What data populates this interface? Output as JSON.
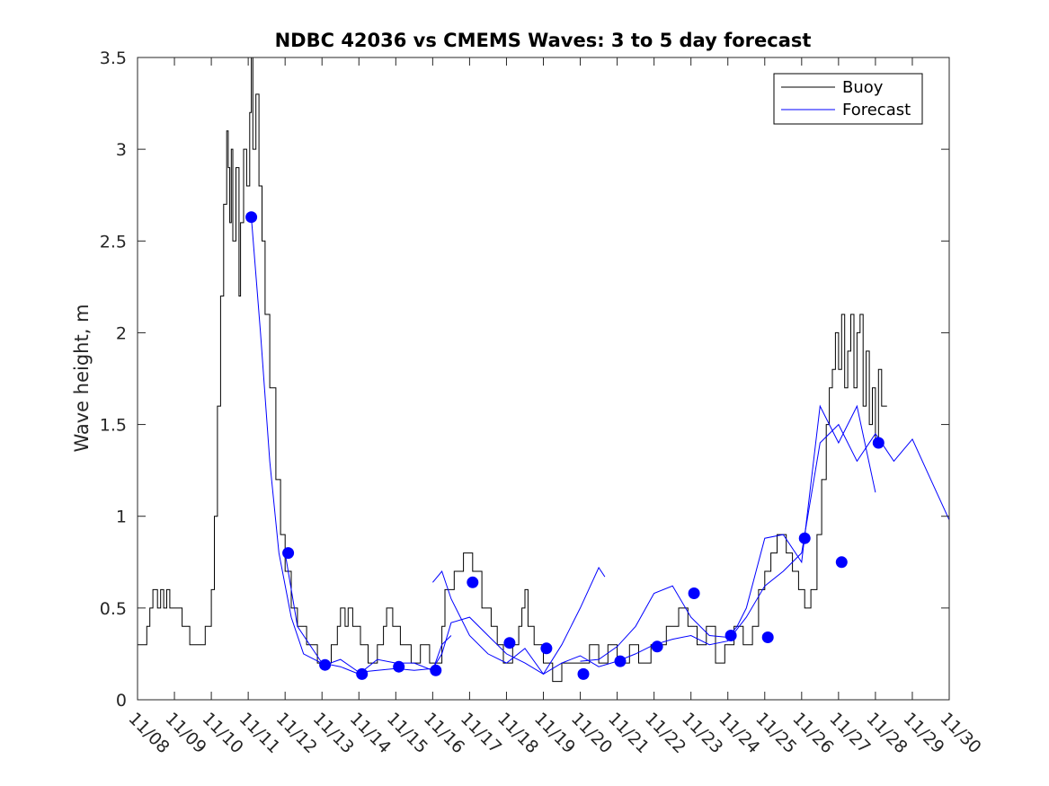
{
  "chart_data": {
    "type": "line",
    "title": "NDBC 42036 vs CMEMS Waves: 3 to 5 day forecast",
    "xlabel": "",
    "ylabel": "Wave height, m",
    "xlim": [
      "2023-11-08",
      "2023-11-30"
    ],
    "ylim": [
      0,
      3.5
    ],
    "x_tick_labels": [
      "11/08",
      "11/09",
      "11/10",
      "11/11",
      "11/12",
      "11/13",
      "11/14",
      "11/15",
      "11/16",
      "11/17",
      "11/18",
      "11/19",
      "11/20",
      "11/21",
      "11/22",
      "11/23",
      "11/24",
      "11/25",
      "11/26",
      "11/27",
      "11/28",
      "11/29",
      "11/30"
    ],
    "y_tick_labels": [
      "0",
      "0.5",
      "1",
      "1.5",
      "2",
      "2.5",
      "3",
      "3.5"
    ],
    "y_ticks": [
      0,
      0.5,
      1,
      1.5,
      2,
      2.5,
      3,
      3.5
    ],
    "grid": false,
    "legend": {
      "position": "top-right",
      "entries": [
        "Buoy",
        "Forecast"
      ]
    },
    "colors": {
      "buoy": "#000000",
      "forecast": "#0000ff"
    },
    "series": [
      {
        "name": "Buoy",
        "style": "step",
        "points": [
          [
            "2023-11-08 00:00",
            0.3
          ],
          [
            "2023-11-08 06:00",
            0.4
          ],
          [
            "2023-11-08 08:00",
            0.5
          ],
          [
            "2023-11-08 10:00",
            0.6
          ],
          [
            "2023-11-08 13:00",
            0.5
          ],
          [
            "2023-11-08 15:00",
            0.6
          ],
          [
            "2023-11-08 17:00",
            0.5
          ],
          [
            "2023-11-08 19:00",
            0.6
          ],
          [
            "2023-11-08 21:00",
            0.5
          ],
          [
            "2023-11-09 02:00",
            0.5
          ],
          [
            "2023-11-09 05:00",
            0.4
          ],
          [
            "2023-11-09 10:00",
            0.3
          ],
          [
            "2023-11-09 20:00",
            0.4
          ],
          [
            "2023-11-10 00:00",
            0.6
          ],
          [
            "2023-11-10 02:00",
            1.0
          ],
          [
            "2023-11-10 04:00",
            1.6
          ],
          [
            "2023-11-10 06:00",
            2.2
          ],
          [
            "2023-11-10 08:00",
            2.7
          ],
          [
            "2023-11-10 10:00",
            3.1
          ],
          [
            "2023-11-10 11:00",
            2.9
          ],
          [
            "2023-11-10 12:00",
            2.6
          ],
          [
            "2023-11-10 13:00",
            3.0
          ],
          [
            "2023-11-10 14:00",
            2.5
          ],
          [
            "2023-11-10 16:00",
            2.9
          ],
          [
            "2023-11-10 18:00",
            2.2
          ],
          [
            "2023-11-10 19:00",
            2.6
          ],
          [
            "2023-11-10 21:00",
            3.0
          ],
          [
            "2023-11-10 23:00",
            2.8
          ],
          [
            "2023-11-11 01:00",
            3.2
          ],
          [
            "2023-11-11 02:00",
            3.5
          ],
          [
            "2023-11-11 03:00",
            3.0
          ],
          [
            "2023-11-11 05:00",
            3.3
          ],
          [
            "2023-11-11 07:00",
            2.8
          ],
          [
            "2023-11-11 09:00",
            2.5
          ],
          [
            "2023-11-11 11:00",
            2.1
          ],
          [
            "2023-11-11 14:00",
            1.7
          ],
          [
            "2023-11-11 18:00",
            1.2
          ],
          [
            "2023-11-11 21:00",
            0.9
          ],
          [
            "2023-11-12 00:00",
            0.7
          ],
          [
            "2023-11-12 04:00",
            0.5
          ],
          [
            "2023-11-12 08:00",
            0.4
          ],
          [
            "2023-11-12 14:00",
            0.3
          ],
          [
            "2023-11-12 21:00",
            0.2
          ],
          [
            "2023-11-13 06:00",
            0.3
          ],
          [
            "2023-11-13 10:00",
            0.4
          ],
          [
            "2023-11-13 12:00",
            0.5
          ],
          [
            "2023-11-13 15:00",
            0.4
          ],
          [
            "2023-11-13 17:00",
            0.5
          ],
          [
            "2023-11-13 20:00",
            0.4
          ],
          [
            "2023-11-14 01:00",
            0.3
          ],
          [
            "2023-11-14 06:00",
            0.2
          ],
          [
            "2023-11-14 12:00",
            0.3
          ],
          [
            "2023-11-14 16:00",
            0.4
          ],
          [
            "2023-11-14 18:00",
            0.5
          ],
          [
            "2023-11-14 22:00",
            0.4
          ],
          [
            "2023-11-15 03:00",
            0.3
          ],
          [
            "2023-11-15 10:00",
            0.2
          ],
          [
            "2023-11-15 16:00",
            0.3
          ],
          [
            "2023-11-15 22:00",
            0.2
          ],
          [
            "2023-11-16 06:00",
            0.4
          ],
          [
            "2023-11-16 08:00",
            0.6
          ],
          [
            "2023-11-16 14:00",
            0.7
          ],
          [
            "2023-11-16 20:00",
            0.8
          ],
          [
            "2023-11-17 02:00",
            0.7
          ],
          [
            "2023-11-17 08:00",
            0.5
          ],
          [
            "2023-11-17 14:00",
            0.4
          ],
          [
            "2023-11-17 18:00",
            0.3
          ],
          [
            "2023-11-17 22:00",
            0.2
          ],
          [
            "2023-11-18 04:00",
            0.3
          ],
          [
            "2023-11-18 08:00",
            0.4
          ],
          [
            "2023-11-18 10:00",
            0.5
          ],
          [
            "2023-11-18 12:00",
            0.6
          ],
          [
            "2023-11-18 14:00",
            0.4
          ],
          [
            "2023-11-18 18:00",
            0.3
          ],
          [
            "2023-11-19 00:00",
            0.2
          ],
          [
            "2023-11-19 06:00",
            0.1
          ],
          [
            "2023-11-19 12:00",
            0.2
          ],
          [
            "2023-11-19 20:00",
            0.2
          ],
          [
            "2023-11-20 06:00",
            0.3
          ],
          [
            "2023-11-20 12:00",
            0.2
          ],
          [
            "2023-11-20 18:00",
            0.3
          ],
          [
            "2023-11-21 00:00",
            0.2
          ],
          [
            "2023-11-21 08:00",
            0.3
          ],
          [
            "2023-11-21 14:00",
            0.2
          ],
          [
            "2023-11-21 22:00",
            0.3
          ],
          [
            "2023-11-22 08:00",
            0.4
          ],
          [
            "2023-11-22 16:00",
            0.5
          ],
          [
            "2023-11-22 22:00",
            0.4
          ],
          [
            "2023-11-23 04:00",
            0.3
          ],
          [
            "2023-11-23 10:00",
            0.4
          ],
          [
            "2023-11-23 16:00",
            0.2
          ],
          [
            "2023-11-23 22:00",
            0.3
          ],
          [
            "2023-11-24 04:00",
            0.4
          ],
          [
            "2023-11-24 10:00",
            0.3
          ],
          [
            "2023-11-24 16:00",
            0.4
          ],
          [
            "2023-11-24 20:00",
            0.6
          ],
          [
            "2023-11-25 00:00",
            0.7
          ],
          [
            "2023-11-25 04:00",
            0.8
          ],
          [
            "2023-11-25 08:00",
            0.9
          ],
          [
            "2023-11-25 14:00",
            0.8
          ],
          [
            "2023-11-25 18:00",
            0.7
          ],
          [
            "2023-11-25 22:00",
            0.6
          ],
          [
            "2023-11-26 02:00",
            0.5
          ],
          [
            "2023-11-26 06:00",
            0.6
          ],
          [
            "2023-11-26 10:00",
            0.9
          ],
          [
            "2023-11-26 13:00",
            1.2
          ],
          [
            "2023-11-26 16:00",
            1.5
          ],
          [
            "2023-11-26 18:00",
            1.7
          ],
          [
            "2023-11-26 20:00",
            1.8
          ],
          [
            "2023-11-26 22:00",
            2.0
          ],
          [
            "2023-11-27 00:00",
            1.8
          ],
          [
            "2023-11-27 02:00",
            2.1
          ],
          [
            "2023-11-27 04:00",
            1.7
          ],
          [
            "2023-11-27 06:00",
            1.9
          ],
          [
            "2023-11-27 08:00",
            2.1
          ],
          [
            "2023-11-27 10:00",
            1.7
          ],
          [
            "2023-11-27 12:00",
            2.0
          ],
          [
            "2023-11-27 14:00",
            2.1
          ],
          [
            "2023-11-27 16:00",
            1.6
          ],
          [
            "2023-11-27 18:00",
            1.9
          ],
          [
            "2023-11-27 20:00",
            1.5
          ],
          [
            "2023-11-27 22:00",
            1.7
          ],
          [
            "2023-11-28 00:00",
            1.4
          ],
          [
            "2023-11-28 02:00",
            1.8
          ],
          [
            "2023-11-28 04:00",
            1.6
          ]
        ]
      },
      {
        "name": "Forecast",
        "style": "line",
        "segments": [
          [
            [
              "2023-11-11 02:00",
              2.63
            ],
            [
              "2023-11-11 08:00",
              2.0
            ],
            [
              "2023-11-11 14:00",
              1.3
            ],
            [
              "2023-11-11 20:00",
              0.8
            ],
            [
              "2023-11-12 04:00",
              0.45
            ],
            [
              "2023-11-12 12:00",
              0.25
            ],
            [
              "2023-11-13 02:00",
              0.19
            ],
            [
              "2023-11-13 12:00",
              0.22
            ],
            [
              "2023-11-14 00:00",
              0.15
            ],
            [
              "2023-11-14 12:00",
              0.16
            ],
            [
              "2023-11-15 00:00",
              0.17
            ],
            [
              "2023-11-15 12:00",
              0.16
            ],
            [
              "2023-11-16 00:00",
              0.17
            ],
            [
              "2023-11-16 06:00",
              0.25
            ],
            [
              "2023-11-16 12:00",
              0.42
            ],
            [
              "2023-11-17 00:00",
              0.45
            ],
            [
              "2023-11-17 12:00",
              0.35
            ],
            [
              "2023-11-18 00:00",
              0.25
            ],
            [
              "2023-11-18 12:00",
              0.2
            ],
            [
              "2023-11-19 00:00",
              0.14
            ],
            [
              "2023-11-19 12:00",
              0.2
            ],
            [
              "2023-11-20 00:00",
              0.24
            ],
            [
              "2023-11-20 12:00",
              0.18
            ],
            [
              "2023-11-21 00:00",
              0.21
            ],
            [
              "2023-11-21 12:00",
              0.25
            ],
            [
              "2023-11-22 00:00",
              0.3
            ],
            [
              "2023-11-22 12:00",
              0.33
            ],
            [
              "2023-11-23 00:00",
              0.35
            ],
            [
              "2023-11-23 12:00",
              0.3
            ],
            [
              "2023-11-24 00:00",
              0.32
            ],
            [
              "2023-11-24 12:00",
              0.45
            ],
            [
              "2023-11-25 00:00",
              0.62
            ],
            [
              "2023-11-25 12:00",
              0.7
            ],
            [
              "2023-11-26 00:00",
              0.8
            ],
            [
              "2023-11-26 12:00",
              1.4
            ],
            [
              "2023-11-27 00:00",
              1.5
            ],
            [
              "2023-11-27 12:00",
              1.3
            ],
            [
              "2023-11-28 00:00",
              1.45
            ],
            [
              "2023-11-28 12:00",
              1.3
            ],
            [
              "2023-11-29 00:00",
              1.42
            ],
            [
              "2023-11-29 12:00",
              1.2
            ],
            [
              "2023-11-29 24:00",
              0.98
            ]
          ],
          [
            [
              "2023-11-12 00:00",
              0.8
            ],
            [
              "2023-11-12 08:00",
              0.4
            ],
            [
              "2023-11-13 00:00",
              0.2
            ],
            [
              "2023-11-13 12:00",
              0.18
            ],
            [
              "2023-11-14 00:00",
              0.14
            ],
            [
              "2023-11-14 12:00",
              0.22
            ],
            [
              "2023-11-15 00:00",
              0.2
            ],
            [
              "2023-11-15 12:00",
              0.2
            ],
            [
              "2023-11-16 00:00",
              0.16
            ],
            [
              "2023-11-16 06:00",
              0.3
            ],
            [
              "2023-11-16 12:00",
              0.35
            ]
          ],
          [
            [
              "2023-11-16 00:00",
              0.64
            ],
            [
              "2023-11-16 06:00",
              0.7
            ],
            [
              "2023-11-16 12:00",
              0.55
            ],
            [
              "2023-11-17 00:00",
              0.35
            ],
            [
              "2023-11-17 12:00",
              0.25
            ],
            [
              "2023-11-18 00:00",
              0.2
            ],
            [
              "2023-11-18 12:00",
              0.28
            ],
            [
              "2023-11-19 00:00",
              0.14
            ],
            [
              "2023-11-19 12:00",
              0.3
            ],
            [
              "2023-11-20 00:00",
              0.5
            ],
            [
              "2023-11-20 12:00",
              0.72
            ],
            [
              "2023-11-20 16:00",
              0.67
            ]
          ],
          [
            [
              "2023-11-20 00:00",
              0.21
            ],
            [
              "2023-11-20 12:00",
              0.22
            ],
            [
              "2023-11-21 00:00",
              0.29
            ],
            [
              "2023-11-21 12:00",
              0.4
            ],
            [
              "2023-11-22 00:00",
              0.58
            ],
            [
              "2023-11-22 12:00",
              0.62
            ],
            [
              "2023-11-23 00:00",
              0.45
            ],
            [
              "2023-11-23 12:00",
              0.35
            ],
            [
              "2023-11-24 00:00",
              0.34
            ],
            [
              "2023-11-24 06:00",
              0.4
            ],
            [
              "2023-11-24 12:00",
              0.5
            ],
            [
              "2023-11-25 00:00",
              0.88
            ],
            [
              "2023-11-25 12:00",
              0.9
            ],
            [
              "2023-11-26 00:00",
              0.75
            ],
            [
              "2023-11-26 12:00",
              1.6
            ],
            [
              "2023-11-27 00:00",
              1.4
            ],
            [
              "2023-11-27 12:00",
              1.6
            ],
            [
              "2023-11-28 00:00",
              1.13
            ]
          ]
        ],
        "markers": [
          [
            "2023-11-11 02:00",
            2.63
          ],
          [
            "2023-11-12 02:00",
            0.8
          ],
          [
            "2023-11-13 02:00",
            0.19
          ],
          [
            "2023-11-14 02:00",
            0.14
          ],
          [
            "2023-11-15 02:00",
            0.18
          ],
          [
            "2023-11-16 02:00",
            0.16
          ],
          [
            "2023-11-17 02:00",
            0.64
          ],
          [
            "2023-11-18 02:00",
            0.31
          ],
          [
            "2023-11-19 02:00",
            0.28
          ],
          [
            "2023-11-20 02:00",
            0.14
          ],
          [
            "2023-11-21 02:00",
            0.21
          ],
          [
            "2023-11-22 02:00",
            0.29
          ],
          [
            "2023-11-23 02:00",
            0.58
          ],
          [
            "2023-11-24 02:00",
            0.35
          ],
          [
            "2023-11-25 02:00",
            0.34
          ],
          [
            "2023-11-26 02:00",
            0.88
          ],
          [
            "2023-11-27 02:00",
            0.75
          ],
          [
            "2023-11-28 02:00",
            1.4
          ]
        ]
      }
    ]
  }
}
